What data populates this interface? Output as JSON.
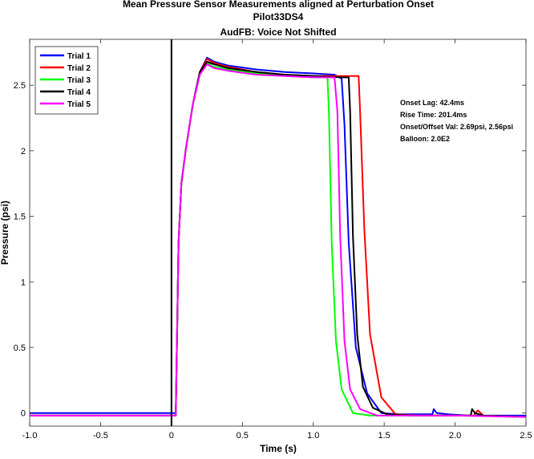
{
  "chart_data": {
    "type": "line",
    "title": [
      "Mean Pressure Sensor Measurements aligned at Perturbation Onset",
      "Pilot33DS4",
      "AudFB: Voice Not Shifted"
    ],
    "xlabel": "Time (s)",
    "ylabel": "Pressure (psi)",
    "xlim": [
      -1.0,
      2.5
    ],
    "ylim": [
      -0.1,
      2.85
    ],
    "xticks": [
      -1.0,
      -0.5,
      0,
      0.5,
      1.0,
      1.5,
      2.0,
      2.5
    ],
    "xtick_labels": [
      "-1.0",
      "-0.5",
      "0",
      "0.5",
      "1.0",
      "1.5",
      "2.0",
      "2.5"
    ],
    "yticks": [
      0,
      0.5,
      1,
      1.5,
      2,
      2.5
    ],
    "ytick_labels": [
      "0",
      "0.5",
      "1",
      "1.5",
      "2",
      "2.5"
    ],
    "grid": false,
    "legend_position": "top-left",
    "onset_marker_x": 0,
    "series": [
      {
        "name": "Trial 1",
        "color": "#0000ff",
        "x": [
          -1.0,
          0.03,
          0.05,
          0.07,
          0.1,
          0.15,
          0.2,
          0.25,
          0.3,
          0.4,
          0.6,
          0.8,
          1.0,
          1.15,
          1.2,
          1.22,
          1.25,
          1.3,
          1.38,
          1.48,
          1.6,
          1.84,
          1.85,
          1.87,
          1.95,
          2.1,
          2.2,
          2.5
        ],
        "y": [
          0.0,
          0.0,
          1.3,
          1.75,
          2.0,
          2.35,
          2.6,
          2.71,
          2.68,
          2.65,
          2.62,
          2.6,
          2.59,
          2.58,
          2.55,
          2.2,
          1.3,
          0.5,
          0.15,
          0.0,
          -0.01,
          -0.01,
          0.03,
          0.0,
          -0.01,
          -0.02,
          -0.02,
          -0.02
        ]
      },
      {
        "name": "Trial 2",
        "color": "#ff0000",
        "x": [
          -1.0,
          0.03,
          0.05,
          0.07,
          0.1,
          0.15,
          0.2,
          0.25,
          0.3,
          0.4,
          0.6,
          0.8,
          1.0,
          1.2,
          1.29,
          1.32,
          1.33,
          1.36,
          1.4,
          1.48,
          1.58,
          1.75,
          2.0,
          2.13,
          2.16,
          2.2,
          2.5
        ],
        "y": [
          -0.02,
          -0.02,
          1.3,
          1.75,
          2.0,
          2.35,
          2.6,
          2.7,
          2.67,
          2.64,
          2.6,
          2.58,
          2.57,
          2.57,
          2.57,
          2.57,
          2.3,
          1.4,
          0.6,
          0.12,
          -0.01,
          -0.02,
          -0.02,
          -0.02,
          0.02,
          -0.02,
          -0.03
        ]
      },
      {
        "name": "Trial 3",
        "color": "#00ff00",
        "x": [
          -1.0,
          0.03,
          0.05,
          0.07,
          0.1,
          0.15,
          0.2,
          0.25,
          0.3,
          0.4,
          0.6,
          0.8,
          1.0,
          1.1,
          1.11,
          1.13,
          1.16,
          1.2,
          1.28,
          1.4,
          1.6,
          2.0,
          2.5
        ],
        "y": [
          -0.02,
          -0.02,
          1.3,
          1.75,
          2.0,
          2.35,
          2.58,
          2.67,
          2.64,
          2.62,
          2.59,
          2.57,
          2.56,
          2.56,
          2.3,
          1.3,
          0.55,
          0.18,
          0.0,
          -0.02,
          -0.02,
          -0.02,
          -0.03
        ]
      },
      {
        "name": "Trial 4",
        "color": "#000000",
        "x": [
          -1.0,
          0.03,
          0.05,
          0.07,
          0.1,
          0.15,
          0.2,
          0.25,
          0.3,
          0.4,
          0.6,
          0.8,
          1.0,
          1.2,
          1.25,
          1.26,
          1.28,
          1.31,
          1.35,
          1.42,
          1.52,
          1.7,
          2.11,
          2.12,
          2.14,
          2.2,
          2.5
        ],
        "y": [
          -0.02,
          -0.02,
          1.3,
          1.75,
          2.0,
          2.35,
          2.6,
          2.68,
          2.66,
          2.63,
          2.6,
          2.58,
          2.57,
          2.56,
          2.56,
          2.3,
          1.35,
          0.6,
          0.2,
          0.04,
          -0.01,
          -0.02,
          -0.02,
          0.03,
          0.0,
          -0.02,
          -0.03
        ]
      },
      {
        "name": "Trial 5",
        "color": "#ff00ff",
        "x": [
          -1.0,
          0.03,
          0.05,
          0.07,
          0.1,
          0.15,
          0.2,
          0.25,
          0.3,
          0.4,
          0.6,
          0.8,
          1.0,
          1.15,
          1.17,
          1.19,
          1.22,
          1.26,
          1.33,
          1.45,
          1.6,
          2.0,
          2.5
        ],
        "y": [
          -0.02,
          -0.02,
          1.3,
          1.75,
          2.0,
          2.35,
          2.58,
          2.66,
          2.63,
          2.61,
          2.58,
          2.57,
          2.56,
          2.56,
          2.3,
          1.35,
          0.55,
          0.18,
          0.03,
          -0.02,
          -0.02,
          -0.02,
          -0.03
        ]
      }
    ],
    "annotations": [
      "Onset Lag: 42.4ms",
      "Rise Time: 201.4ms",
      "Onset/Offset Val: 2.69psi, 2.56psi",
      "Balloon: 2.0E2"
    ]
  }
}
